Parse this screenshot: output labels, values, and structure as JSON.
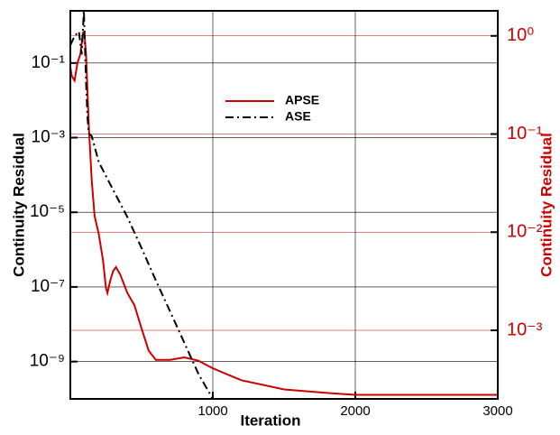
{
  "chart_data": {
    "type": "line",
    "xlabel": "Iteration",
    "ylabel": "Continuity Residual",
    "y2label": "Continuity Residual",
    "xlim": [
      0,
      3000
    ],
    "xticks": [
      1000,
      2000,
      3000
    ],
    "ylim": [
      1e-10,
      2.5
    ],
    "yscale": "log",
    "yticks": [
      {
        "value": 0.1,
        "label": "10⁻¹"
      },
      {
        "value": 0.001,
        "label": "10⁻³"
      },
      {
        "value": 1e-05,
        "label": "10⁻⁵"
      },
      {
        "value": 1e-07,
        "label": "10⁻⁷"
      },
      {
        "value": 1e-09,
        "label": "10⁻⁹"
      }
    ],
    "y2lim": [
      0.0002,
      1.8
    ],
    "y2scale": "log",
    "y2ticks": [
      {
        "value": 1,
        "label": "10⁰"
      },
      {
        "value": 0.1,
        "label": "10⁻¹"
      },
      {
        "value": 0.01,
        "label": "10⁻²"
      },
      {
        "value": 0.001,
        "label": "10⁻³"
      }
    ],
    "y2color": "#cc0000",
    "grid": true,
    "legend_position": "upper center",
    "series": [
      {
        "name": "APSE",
        "color": "#cc0000",
        "axis": "y2",
        "dash": "solid",
        "x": [
          0,
          10,
          30,
          50,
          70,
          90,
          100,
          110,
          130,
          150,
          170,
          200,
          230,
          250,
          260,
          280,
          300,
          320,
          350,
          400,
          450,
          500,
          550,
          600,
          700,
          800,
          900,
          1000,
          1200,
          1500,
          1800,
          2000,
          3000
        ],
        "values": [
          0.48,
          0.39,
          0.35,
          0.53,
          0.65,
          1.1,
          1.0,
          0.65,
          0.12,
          0.034,
          0.0146,
          0.0095,
          0.0051,
          0.0027,
          0.0024,
          0.0032,
          0.004,
          0.0044,
          0.0037,
          0.0024,
          0.0018,
          0.00104,
          0.00062,
          0.0005,
          0.0005,
          0.00053,
          0.00049,
          0.00041,
          0.00031,
          0.00025,
          0.00023,
          0.00022,
          0.00022
        ]
      },
      {
        "name": "ASE",
        "color": "#000000",
        "axis": "y",
        "dash": "dashdot",
        "x": [
          0,
          30,
          60,
          80,
          95,
          110,
          120,
          130,
          150,
          200,
          300,
          400,
          500,
          600,
          700,
          800,
          900,
          1000
        ],
        "values": [
          0.3,
          0.53,
          0.7,
          0.17,
          2.5,
          0.033,
          0.0035,
          0.0013,
          0.0011,
          0.00022,
          4e-05,
          7.5e-06,
          1.1e-06,
          1.5e-07,
          2.2e-08,
          3.2e-09,
          4.6e-10,
          1e-10
        ]
      }
    ]
  }
}
